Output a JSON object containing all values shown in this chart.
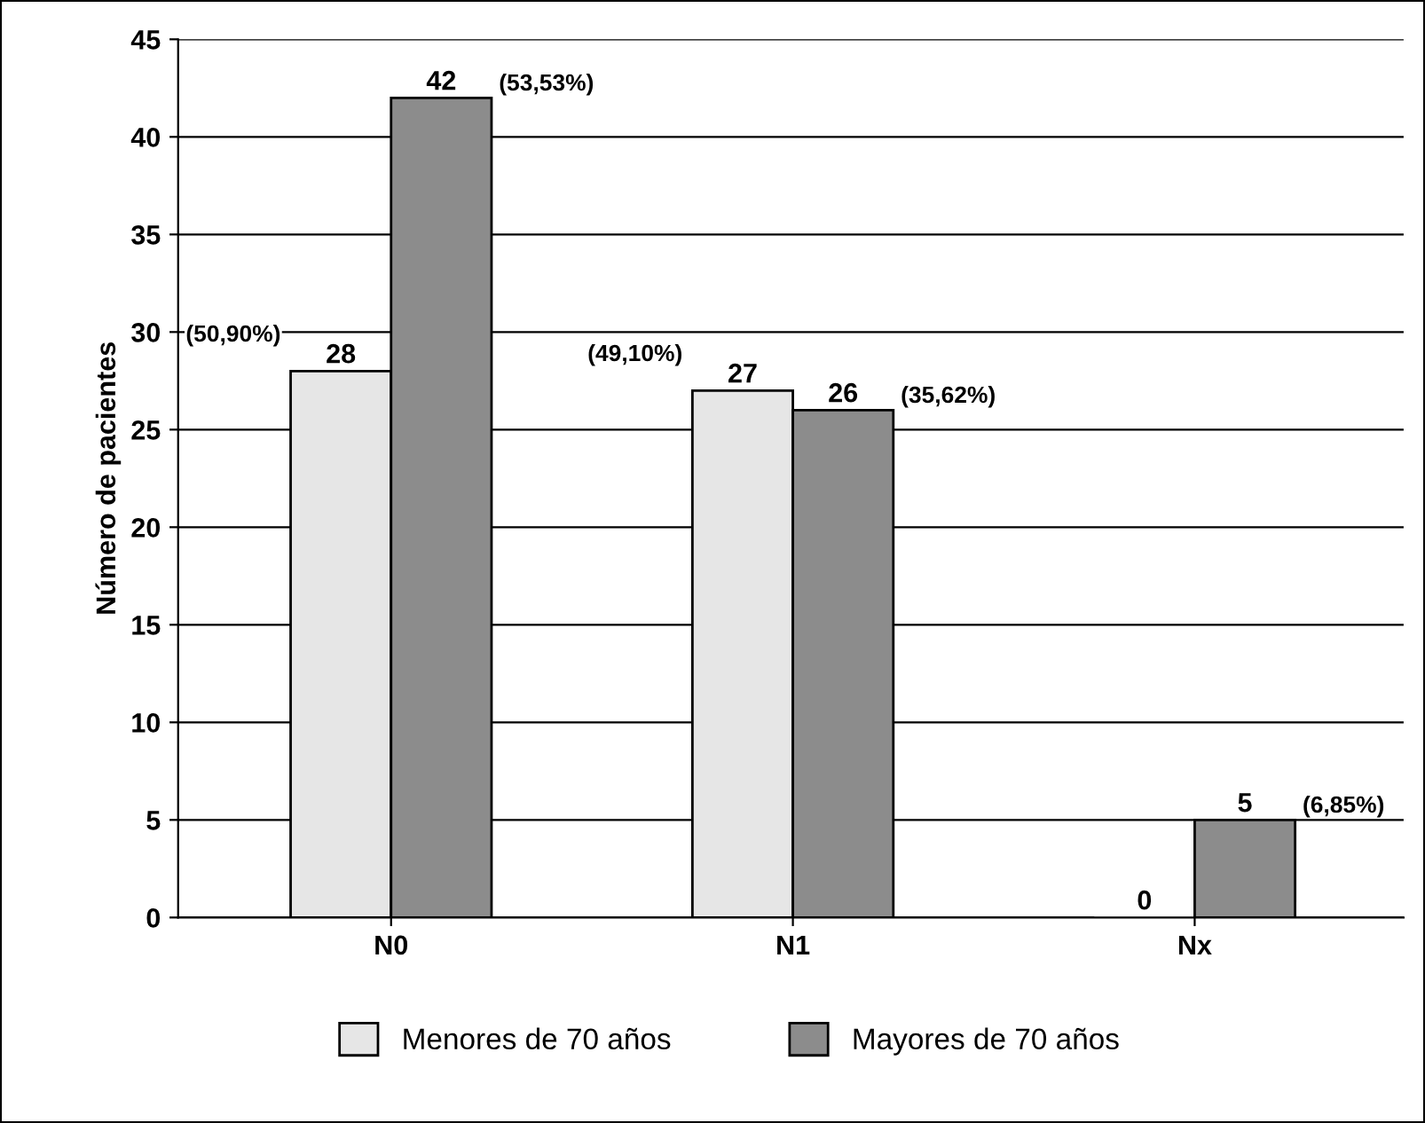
{
  "chart_data": {
    "type": "bar",
    "ylabel": "Número de pacientes",
    "categories": [
      "N0",
      "N1",
      "Nx"
    ],
    "series": [
      {
        "name": "Menores de 70 años",
        "color": "#e6e6e6",
        "values": [
          28,
          27,
          0
        ]
      },
      {
        "name": "Mayores de 70 años",
        "color": "#8c8c8c",
        "values": [
          42,
          26,
          5
        ]
      }
    ],
    "ylim": [
      0,
      45
    ],
    "yticks": [
      0,
      5,
      10,
      15,
      20,
      25,
      30,
      35,
      40,
      45
    ],
    "grid": "y",
    "legend": "bottom",
    "data_labels": true,
    "annotations": [
      "(50,90%)",
      "(53,53%)",
      "(49,10%)",
      "(35,62%)",
      "(6,85%)"
    ]
  }
}
